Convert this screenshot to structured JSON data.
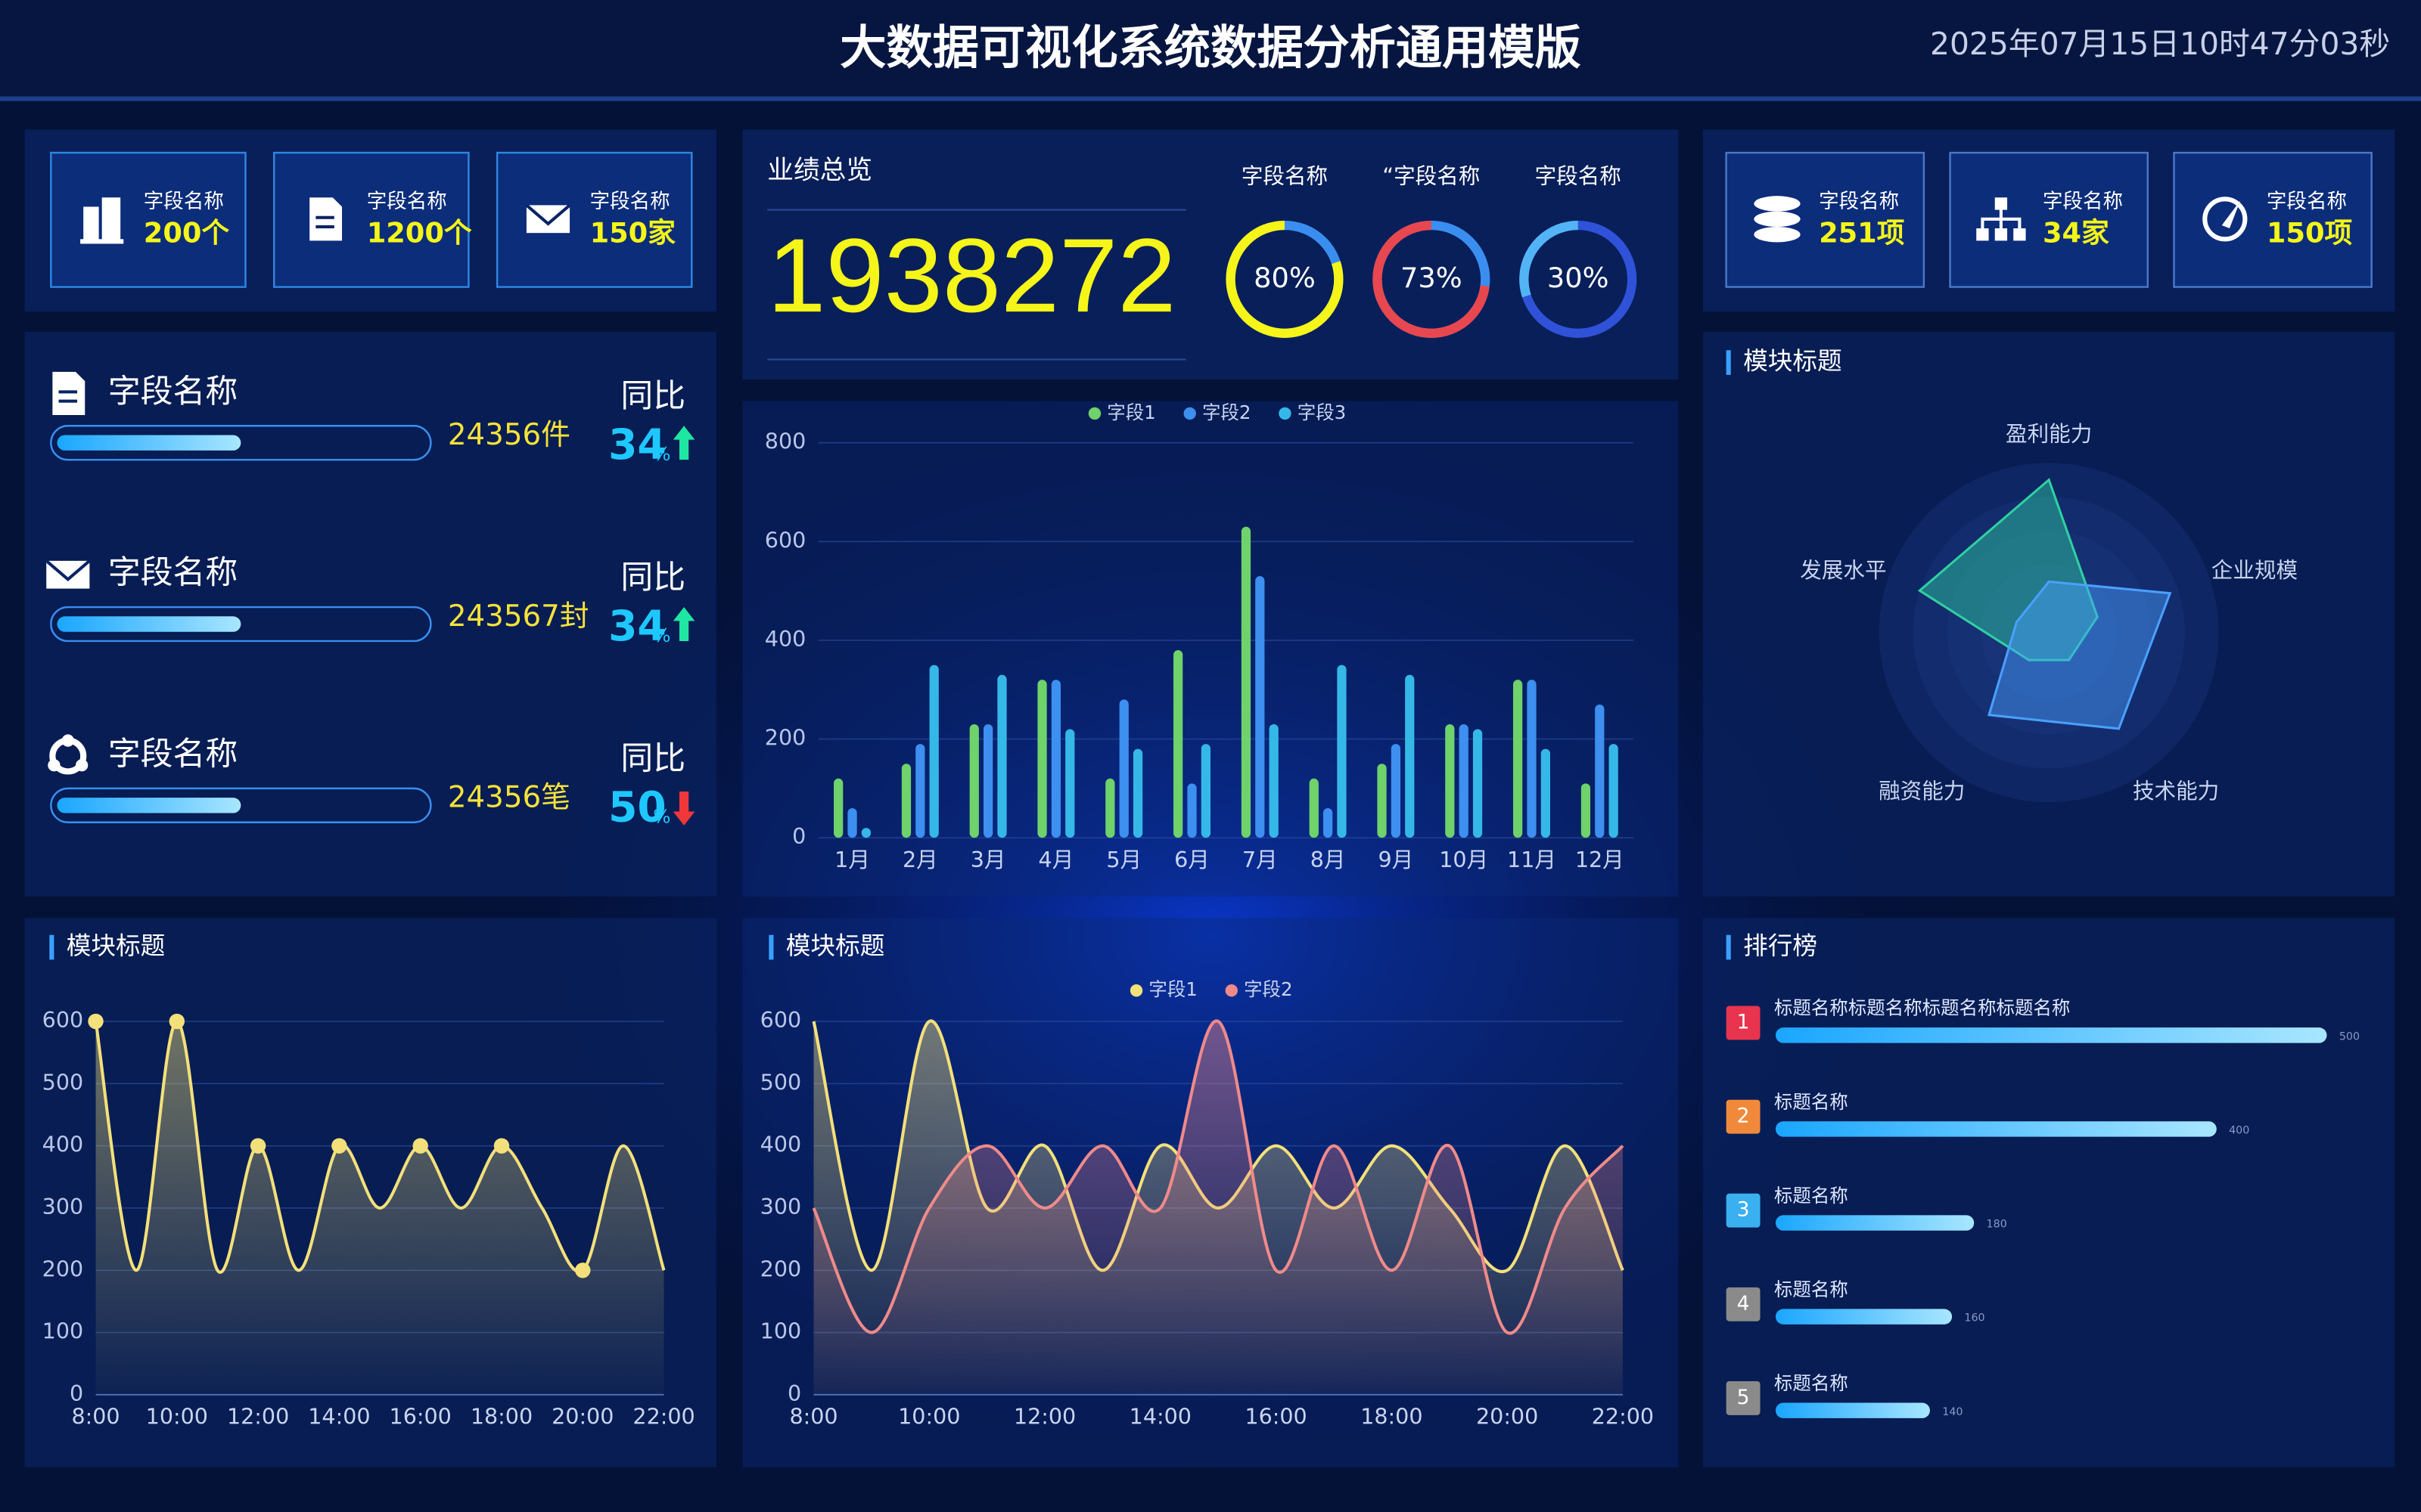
{
  "header": {
    "title": "大数据可视化系统数据分析通用模版",
    "datetime": "2025年07月15日10时47分03秒"
  },
  "left_stats": [
    {
      "label": "字段名称",
      "value": "200个"
    },
    {
      "label": "字段名称",
      "value": "1200个"
    },
    {
      "label": "字段名称",
      "value": "150家"
    }
  ],
  "right_stats": [
    {
      "label": "字段名称",
      "value": "251项"
    },
    {
      "label": "字段名称",
      "value": "34家"
    },
    {
      "label": "字段名称",
      "value": "150项"
    }
  ],
  "progress": [
    {
      "label": "字段名称",
      "value": "24356件",
      "progress": 50,
      "yoy_label": "同比",
      "yoy": 34,
      "yoy_unit": "%",
      "trend": "up"
    },
    {
      "label": "字段名称",
      "value": "243567封",
      "progress": 50,
      "yoy_label": "同比",
      "yoy": 34,
      "yoy_unit": "%",
      "trend": "up"
    },
    {
      "label": "字段名称",
      "value": "24356笔",
      "progress": 50,
      "yoy_label": "同比",
      "yoy": 50,
      "yoy_unit": "%",
      "trend": "down"
    }
  ],
  "performance": {
    "title": "业绩总览",
    "total": "1938272",
    "gauges": [
      {
        "name": "字段名称",
        "value": 80,
        "value_label": "80%",
        "color": "#f5f519",
        "track": "#3a8ef0"
      },
      {
        "name": "“字段名称",
        "value": 73,
        "value_label": "73%",
        "color": "#e8474f",
        "track": "#3a8ef0"
      },
      {
        "name": "字段名称",
        "value": 30,
        "value_label": "30%",
        "color": "#53b4f5",
        "track": "#3052d8"
      }
    ]
  },
  "chart_data": [
    {
      "type": "bar",
      "categories": [
        "1月",
        "2月",
        "3月",
        "4月",
        "5月",
        "6月",
        "7月",
        "8月",
        "9月",
        "10月",
        "11月",
        "12月"
      ],
      "series": [
        {
          "name": "字段1",
          "color": "#6fd26a",
          "values": [
            120,
            150,
            230,
            320,
            120,
            380,
            630,
            120,
            150,
            230,
            320,
            110
          ]
        },
        {
          "name": "字段2",
          "color": "#3d8ff0",
          "values": [
            60,
            190,
            230,
            320,
            280,
            110,
            530,
            60,
            190,
            230,
            320,
            270
          ]
        },
        {
          "name": "字段3",
          "color": "#35b8e8",
          "values": [
            20,
            350,
            330,
            220,
            180,
            190,
            230,
            350,
            330,
            220,
            180,
            190
          ]
        }
      ],
      "ylim": [
        0,
        800
      ],
      "yticks": [
        0,
        200,
        400,
        600,
        800
      ],
      "grid": true
    },
    {
      "type": "line",
      "title": "模块标题",
      "categories": [
        "8:00",
        null,
        "10:00",
        null,
        "12:00",
        null,
        "14:00",
        null,
        "16:00",
        null,
        "18:00",
        null,
        "20:00",
        null,
        "22:00"
      ],
      "series": [
        {
          "color": "#f3e07a",
          "values": [
            600,
            200,
            600,
            200,
            400,
            200,
            400,
            300,
            400,
            300,
            400,
            300,
            200,
            400,
            200
          ]
        }
      ],
      "ylim": [
        0,
        600
      ],
      "yticks": [
        0,
        100,
        200,
        300,
        400,
        500,
        600
      ],
      "grid": true
    },
    {
      "type": "line",
      "title": "模块标题",
      "categories": [
        "8:00",
        null,
        "10:00",
        null,
        "12:00",
        null,
        "14:00",
        null,
        "16:00",
        null,
        "18:00",
        null,
        "20:00",
        null,
        "22:00"
      ],
      "series": [
        {
          "name": "字段1",
          "color": "#f3e07a",
          "values": [
            600,
            200,
            600,
            300,
            400,
            200,
            400,
            300,
            400,
            300,
            400,
            300,
            200,
            400,
            200
          ]
        },
        {
          "name": "字段2",
          "color": "#f08a8a",
          "values": [
            300,
            100,
            300,
            400,
            300,
            400,
            300,
            600,
            200,
            400,
            200,
            400,
            100,
            300,
            400
          ]
        }
      ],
      "ylim": [
        0,
        600
      ],
      "yticks": [
        0,
        100,
        200,
        300,
        400,
        500,
        600
      ],
      "grid": true
    },
    {
      "type": "radar",
      "title": "模块标题",
      "indicators": [
        "盈利能力",
        "企业规模",
        "技术能力",
        "融资能力",
        "发展水平"
      ],
      "rlim": [
        0,
        100
      ],
      "series": [
        {
          "color": "#2fd0a0",
          "values": [
            90,
            30,
            20,
            20,
            80
          ]
        },
        {
          "color": "#4aa0ff",
          "values": [
            30,
            75,
            70,
            60,
            20
          ]
        }
      ]
    }
  ],
  "ranking": {
    "title": "排行榜",
    "items": [
      {
        "rank": "1",
        "name": "标题名称标题名称标题名称标题名称",
        "value": 500,
        "color": "#e8344e"
      },
      {
        "rank": "2",
        "name": "标题名称",
        "value": 400,
        "color": "#f08a3a"
      },
      {
        "rank": "3",
        "name": "标题名称",
        "value": 180,
        "color": "#3ab0f0"
      },
      {
        "rank": "4",
        "name": "标题名称",
        "value": 160,
        "color": "#8a8a8a"
      },
      {
        "rank": "5",
        "name": "标题名称",
        "value": 140,
        "color": "#8a8a8a"
      }
    ]
  }
}
